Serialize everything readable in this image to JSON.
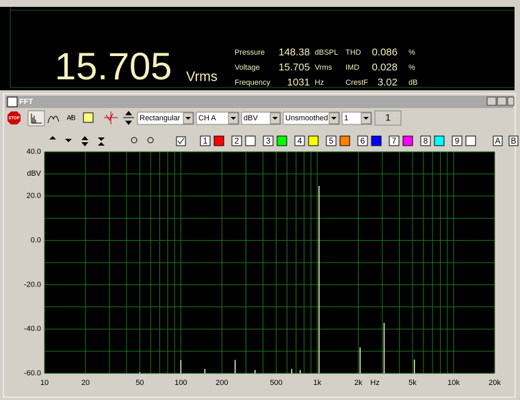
{
  "meter": {
    "main_value": "15.705",
    "main_unit": "Vrms",
    "readings": [
      [
        "Pressure",
        "148.38",
        "dBSPL"
      ],
      [
        "Voltage",
        "15.705",
        "Vrms"
      ],
      [
        "Frequency",
        "1031",
        "Hz"
      ]
    ],
    "readings2": [
      [
        "THD",
        "0.086",
        "%"
      ],
      [
        "IMD",
        "0.028",
        "%"
      ],
      [
        "CrestF",
        "3.02",
        "dB"
      ]
    ]
  },
  "window": {
    "title": "FFT",
    "toolbar": {
      "stop": "STOP",
      "window_fn": "Rectangular",
      "channel": "CH A",
      "units": "dBV",
      "smoothing": "Unsmoothed",
      "trace_select": "1",
      "trace_label": "1"
    },
    "traces": [
      "1",
      "2",
      "3",
      "4",
      "5",
      "6",
      "7",
      "8",
      "9"
    ],
    "trace_colors": [
      "#ff0000",
      "#ffffff",
      "#00ff00",
      "#ffff00",
      "#ff8000",
      "#0000ff",
      "#ff00ff",
      "#00ffff",
      "#ffffff"
    ],
    "extra": [
      "A",
      "B"
    ]
  },
  "chart_data": {
    "type": "stem",
    "color": "#f5f5c8",
    "grid_color": "#1f7a1f",
    "log_x": true,
    "x_label": "Hz",
    "y_label": "dBV",
    "x": [
      50,
      100,
      150,
      250,
      350,
      650,
      750,
      1031,
      2062,
      3093,
      5155
    ],
    "values": [
      -59.5,
      -54,
      -58,
      -54,
      -58.5,
      -58,
      -58.5,
      24.6,
      -48.3,
      -37.2,
      -53.8
    ],
    "xlim": [
      10,
      20000
    ],
    "ylim": [
      -60,
      40
    ],
    "xticks": [
      10,
      20,
      50,
      100,
      200,
      500,
      {
        "value": 1000,
        "label": "1k"
      },
      {
        "value": 2000,
        "label": "2k"
      },
      {
        "value": 5000,
        "label": "5k"
      },
      {
        "value": 10000,
        "label": "10k"
      },
      {
        "value": 20000,
        "label": "20k"
      }
    ],
    "yticks": [
      {
        "value": 40,
        "label": "40.0"
      },
      {
        "value": 20,
        "label": "20.0"
      },
      {
        "value": 0,
        "label": "0.0"
      },
      {
        "value": -20,
        "label": "-20.0"
      },
      {
        "value": -40,
        "label": "-40.0"
      },
      {
        "value": -60,
        "label": "-60.0"
      }
    ],
    "x_grid": [
      10,
      20,
      30,
      40,
      50,
      60,
      70,
      80,
      90,
      100,
      200,
      300,
      400,
      500,
      600,
      700,
      800,
      900,
      1000,
      2000,
      3000,
      4000,
      5000,
      6000,
      7000,
      8000,
      9000,
      10000,
      20000
    ],
    "y_grid": [
      40,
      30,
      20,
      10,
      0,
      -10,
      -20,
      -30,
      -40,
      -50,
      -60
    ]
  }
}
